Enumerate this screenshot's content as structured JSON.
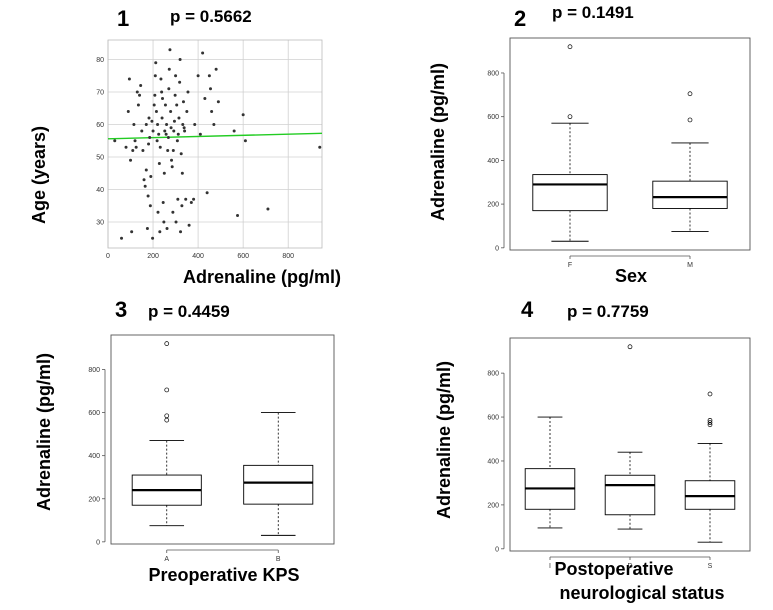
{
  "chart_data": [
    {
      "panel": "1",
      "type": "scatter",
      "title": "p = 0.5662",
      "xlabel": "Adrenaline (pg/ml)",
      "ylabel": "Age (years)",
      "xlim": [
        0,
        950
      ],
      "ylim": [
        22,
        86
      ],
      "xticks": [
        0,
        200,
        400,
        600,
        800
      ],
      "yticks": [
        30,
        40,
        50,
        60,
        70,
        80
      ],
      "grid": true,
      "fit_line": {
        "color": "#22cc22",
        "points": [
          [
            0,
            55.6
          ],
          [
            950,
            57.3
          ]
        ]
      },
      "points": [
        [
          30,
          55
        ],
        [
          60,
          25
        ],
        [
          80,
          53
        ],
        [
          90,
          64
        ],
        [
          95,
          74
        ],
        [
          100,
          49
        ],
        [
          105,
          27
        ],
        [
          110,
          52
        ],
        [
          115,
          60
        ],
        [
          120,
          55
        ],
        [
          125,
          53
        ],
        [
          130,
          70
        ],
        [
          135,
          66
        ],
        [
          140,
          69
        ],
        [
          145,
          72
        ],
        [
          150,
          58
        ],
        [
          155,
          52
        ],
        [
          160,
          43
        ],
        [
          165,
          41
        ],
        [
          170,
          46
        ],
        [
          170,
          60
        ],
        [
          175,
          28
        ],
        [
          178,
          38
        ],
        [
          180,
          54
        ],
        [
          182,
          62
        ],
        [
          185,
          56
        ],
        [
          188,
          35
        ],
        [
          190,
          44
        ],
        [
          195,
          61
        ],
        [
          198,
          25
        ],
        [
          200,
          58
        ],
        [
          205,
          66
        ],
        [
          208,
          69
        ],
        [
          210,
          75
        ],
        [
          212,
          79
        ],
        [
          215,
          64
        ],
        [
          218,
          55
        ],
        [
          220,
          60
        ],
        [
          222,
          33
        ],
        [
          225,
          57
        ],
        [
          228,
          48
        ],
        [
          230,
          27
        ],
        [
          232,
          53
        ],
        [
          235,
          74
        ],
        [
          238,
          70
        ],
        [
          240,
          62
        ],
        [
          242,
          68
        ],
        [
          245,
          36
        ],
        [
          248,
          30
        ],
        [
          250,
          45
        ],
        [
          252,
          58
        ],
        [
          255,
          66
        ],
        [
          258,
          57
        ],
        [
          260,
          60
        ],
        [
          262,
          28
        ],
        [
          265,
          52
        ],
        [
          268,
          56
        ],
        [
          270,
          71
        ],
        [
          272,
          77
        ],
        [
          275,
          83
        ],
        [
          278,
          64
        ],
        [
          280,
          59
        ],
        [
          282,
          49
        ],
        [
          285,
          47
        ],
        [
          288,
          33
        ],
        [
          290,
          52
        ],
        [
          292,
          58
        ],
        [
          295,
          61
        ],
        [
          298,
          69
        ],
        [
          300,
          75
        ],
        [
          302,
          30
        ],
        [
          305,
          66
        ],
        [
          308,
          55
        ],
        [
          310,
          37
        ],
        [
          312,
          57
        ],
        [
          315,
          62
        ],
        [
          318,
          73
        ],
        [
          320,
          80
        ],
        [
          322,
          27
        ],
        [
          325,
          51
        ],
        [
          328,
          35
        ],
        [
          330,
          45
        ],
        [
          332,
          60
        ],
        [
          335,
          67
        ],
        [
          338,
          59
        ],
        [
          340,
          58
        ],
        [
          345,
          37
        ],
        [
          350,
          64
        ],
        [
          355,
          70
        ],
        [
          360,
          29
        ],
        [
          370,
          36
        ],
        [
          380,
          37
        ],
        [
          385,
          60
        ],
        [
          400,
          75
        ],
        [
          410,
          57
        ],
        [
          420,
          82
        ],
        [
          430,
          68
        ],
        [
          440,
          39
        ],
        [
          450,
          75
        ],
        [
          455,
          71
        ],
        [
          460,
          64
        ],
        [
          470,
          60
        ],
        [
          480,
          77
        ],
        [
          490,
          67
        ],
        [
          560,
          58
        ],
        [
          575,
          32
        ],
        [
          600,
          63
        ],
        [
          610,
          55
        ],
        [
          710,
          34
        ],
        [
          940,
          53
        ]
      ]
    },
    {
      "panel": "2",
      "type": "box",
      "title": "p = 0.1491",
      "xlabel": "Sex",
      "ylabel": "Adrenaline (pg/ml)",
      "ylim": [
        -10,
        960
      ],
      "yticks": [
        0,
        200,
        400,
        600,
        800
      ],
      "categories": [
        "F",
        "M"
      ],
      "boxes": [
        {
          "min": 30,
          "q1": 170,
          "median": 290,
          "q3": 335,
          "max": 570,
          "outliers": [
            600,
            920
          ]
        },
        {
          "min": 75,
          "q1": 180,
          "median": 232,
          "q3": 305,
          "max": 480,
          "outliers": [
            585,
            705
          ]
        }
      ]
    },
    {
      "panel": "3",
      "type": "box",
      "title": "p = 0.4459",
      "xlabel": "Preoperative KPS",
      "ylabel": "Adrenaline (pg/ml)",
      "ylim": [
        -10,
        960
      ],
      "yticks": [
        0,
        200,
        400,
        600,
        800
      ],
      "categories": [
        "A",
        "B"
      ],
      "boxes": [
        {
          "min": 75,
          "q1": 170,
          "median": 240,
          "q3": 310,
          "max": 470,
          "outliers": [
            565,
            585,
            705,
            920
          ]
        },
        {
          "min": 30,
          "q1": 175,
          "median": 275,
          "q3": 355,
          "max": 600,
          "outliers": []
        }
      ]
    },
    {
      "panel": "4",
      "type": "box",
      "title": "p = 0.7759",
      "xlabel": "Postoperative neurological status",
      "ylabel": "Adrenaline (pg/ml)",
      "ylim": [
        -10,
        960
      ],
      "yticks": [
        0,
        200,
        400,
        600,
        800
      ],
      "categories": [
        "I",
        "D",
        "S"
      ],
      "boxes": [
        {
          "min": 95,
          "q1": 180,
          "median": 275,
          "q3": 365,
          "max": 600,
          "outliers": []
        },
        {
          "min": 90,
          "q1": 155,
          "median": 290,
          "q3": 335,
          "max": 440,
          "outliers": [
            920
          ]
        },
        {
          "min": 30,
          "q1": 180,
          "median": 240,
          "q3": 310,
          "max": 480,
          "outliers": [
            565,
            575,
            585,
            705
          ]
        }
      ]
    }
  ],
  "labels": {
    "panel1_num": "1",
    "panel1_p": "p = 0.5662",
    "panel1_x": "Adrenaline (pg/ml)",
    "panel1_y": "Age (years)",
    "panel2_num": "2",
    "panel2_p": "p = 0.1491",
    "panel2_x": "Sex",
    "panel2_y": "Adrenaline (pg/ml)",
    "panel3_num": "3",
    "panel3_p": "p = 0.4459",
    "panel3_x": "Preoperative KPS",
    "panel3_y": "Adrenaline (pg/ml)",
    "panel4_num": "4",
    "panel4_p": "p = 0.7759",
    "panel4_x_line1": "Postoperative",
    "panel4_x_line2": "neurological status",
    "panel4_y": "Adrenaline (pg/ml)"
  }
}
